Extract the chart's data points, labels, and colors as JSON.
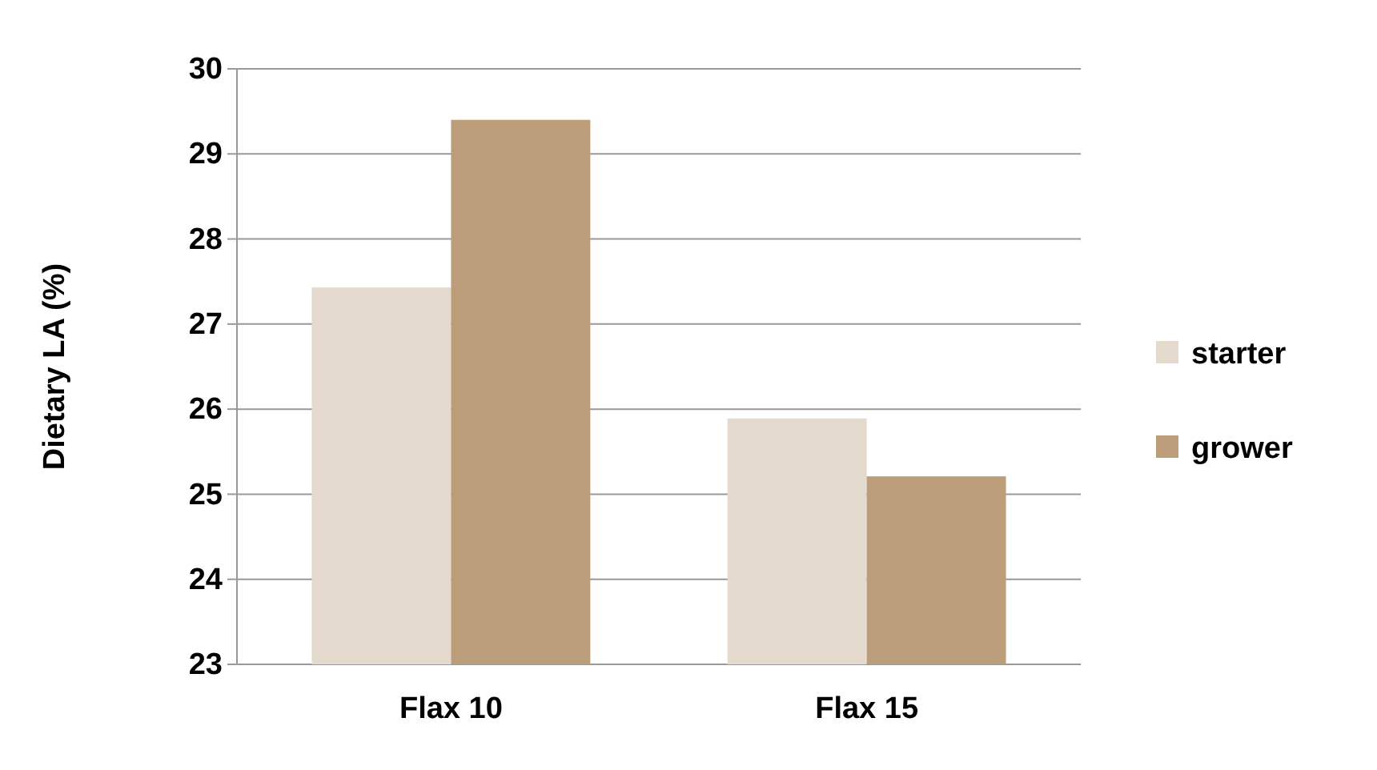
{
  "chart_data": {
    "type": "bar",
    "ylabel": "Dietary LA (%)",
    "categories": [
      "Flax 10",
      "Flax 15"
    ],
    "series": [
      {
        "name": "starter",
        "color": "#e3d9cc",
        "values": [
          27.43,
          25.89
        ]
      },
      {
        "name": "grower",
        "color": "#bc9d7a",
        "values": [
          29.4,
          25.21
        ]
      }
    ],
    "ylim": [
      23,
      30
    ],
    "yticks": [
      23,
      24,
      25,
      26,
      27,
      28,
      29,
      30
    ],
    "grid": "y",
    "legend": "right"
  }
}
